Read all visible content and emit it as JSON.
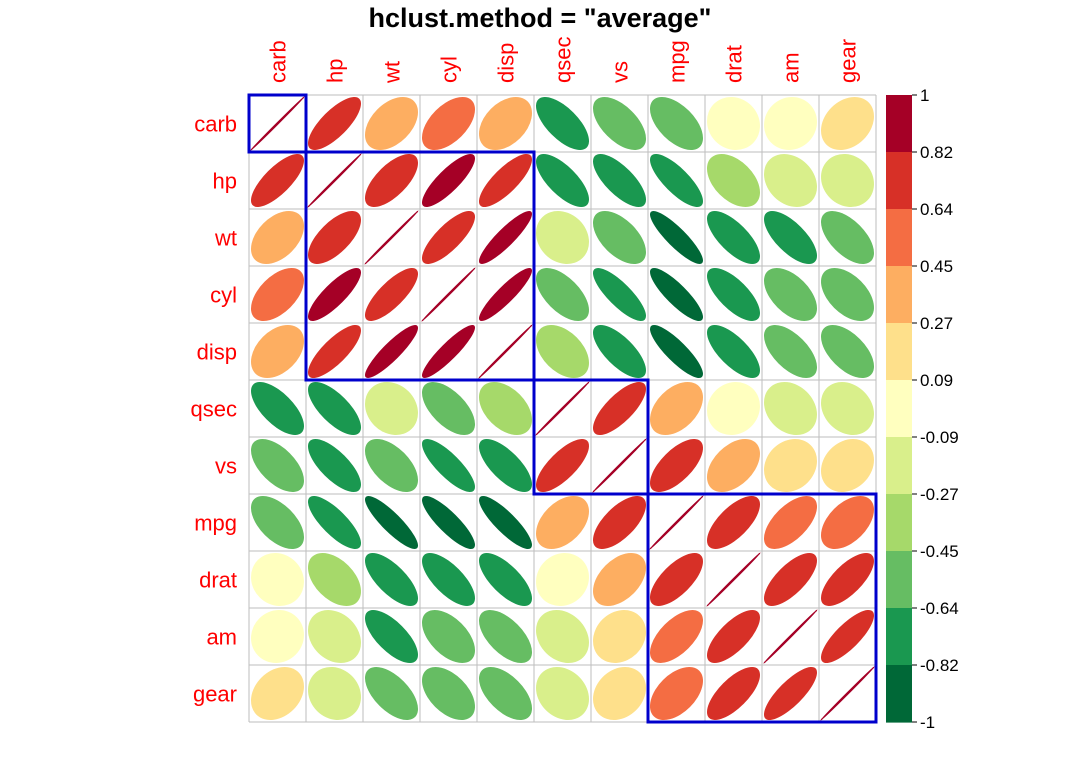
{
  "chart_data": {
    "type": "heatmap",
    "title": "hclust.method = \"average\"",
    "variables": [
      "carb",
      "hp",
      "wt",
      "cyl",
      "disp",
      "qsec",
      "vs",
      "mpg",
      "drat",
      "am",
      "gear"
    ],
    "matrix": [
      [
        1.0,
        0.75,
        0.43,
        0.53,
        0.39,
        -0.66,
        -0.57,
        -0.55,
        -0.09,
        0.06,
        0.27
      ],
      [
        0.75,
        1.0,
        0.66,
        0.83,
        0.79,
        -0.71,
        -0.72,
        -0.78,
        -0.45,
        -0.24,
        -0.13
      ],
      [
        0.43,
        0.66,
        1.0,
        0.78,
        0.89,
        -0.17,
        -0.55,
        -0.87,
        -0.71,
        -0.69,
        -0.58
      ],
      [
        0.53,
        0.83,
        0.78,
        1.0,
        0.9,
        -0.59,
        -0.81,
        -0.85,
        -0.7,
        -0.52,
        -0.49
      ],
      [
        0.39,
        0.79,
        0.89,
        0.9,
        1.0,
        -0.43,
        -0.71,
        -0.85,
        -0.71,
        -0.59,
        -0.56
      ],
      [
        -0.66,
        -0.71,
        -0.17,
        -0.59,
        -0.43,
        1.0,
        0.74,
        0.42,
        0.09,
        -0.23,
        -0.21
      ],
      [
        -0.57,
        -0.72,
        -0.55,
        -0.81,
        -0.71,
        0.74,
        1.0,
        0.66,
        0.44,
        0.17,
        0.21
      ],
      [
        -0.55,
        -0.78,
        -0.87,
        -0.85,
        -0.85,
        0.42,
        0.66,
        1.0,
        0.68,
        0.6,
        0.48
      ],
      [
        -0.09,
        -0.45,
        -0.71,
        -0.7,
        -0.71,
        0.09,
        0.44,
        0.68,
        1.0,
        0.71,
        0.7
      ],
      [
        0.06,
        -0.24,
        -0.69,
        -0.52,
        -0.59,
        -0.23,
        0.17,
        0.6,
        0.71,
        1.0,
        0.79
      ],
      [
        0.27,
        -0.13,
        -0.58,
        -0.49,
        -0.56,
        -0.21,
        0.21,
        0.48,
        0.7,
        0.79,
        1.0
      ]
    ],
    "clusters": [
      [
        0,
        0
      ],
      [
        1,
        4
      ],
      [
        5,
        6
      ],
      [
        7,
        10
      ]
    ],
    "colorbar": {
      "ticks": [
        "1",
        "0.82",
        "0.64",
        "0.45",
        "0.27",
        "0.09",
        "-0.09",
        "-0.27",
        "-0.45",
        "-0.64",
        "-0.82",
        "-1"
      ],
      "colors": [
        "#A50026",
        "#D73027",
        "#F46D43",
        "#FDAE61",
        "#FEE08B",
        "#FFFFBF",
        "#D9EF8B",
        "#A6D96A",
        "#66BD63",
        "#1A9850",
        "#006837"
      ]
    },
    "label_color": "#FF0000",
    "cluster_rect_color": "#0000CC",
    "grid_color": "#BEBEBE",
    "diagonal_color": "#A50026"
  }
}
